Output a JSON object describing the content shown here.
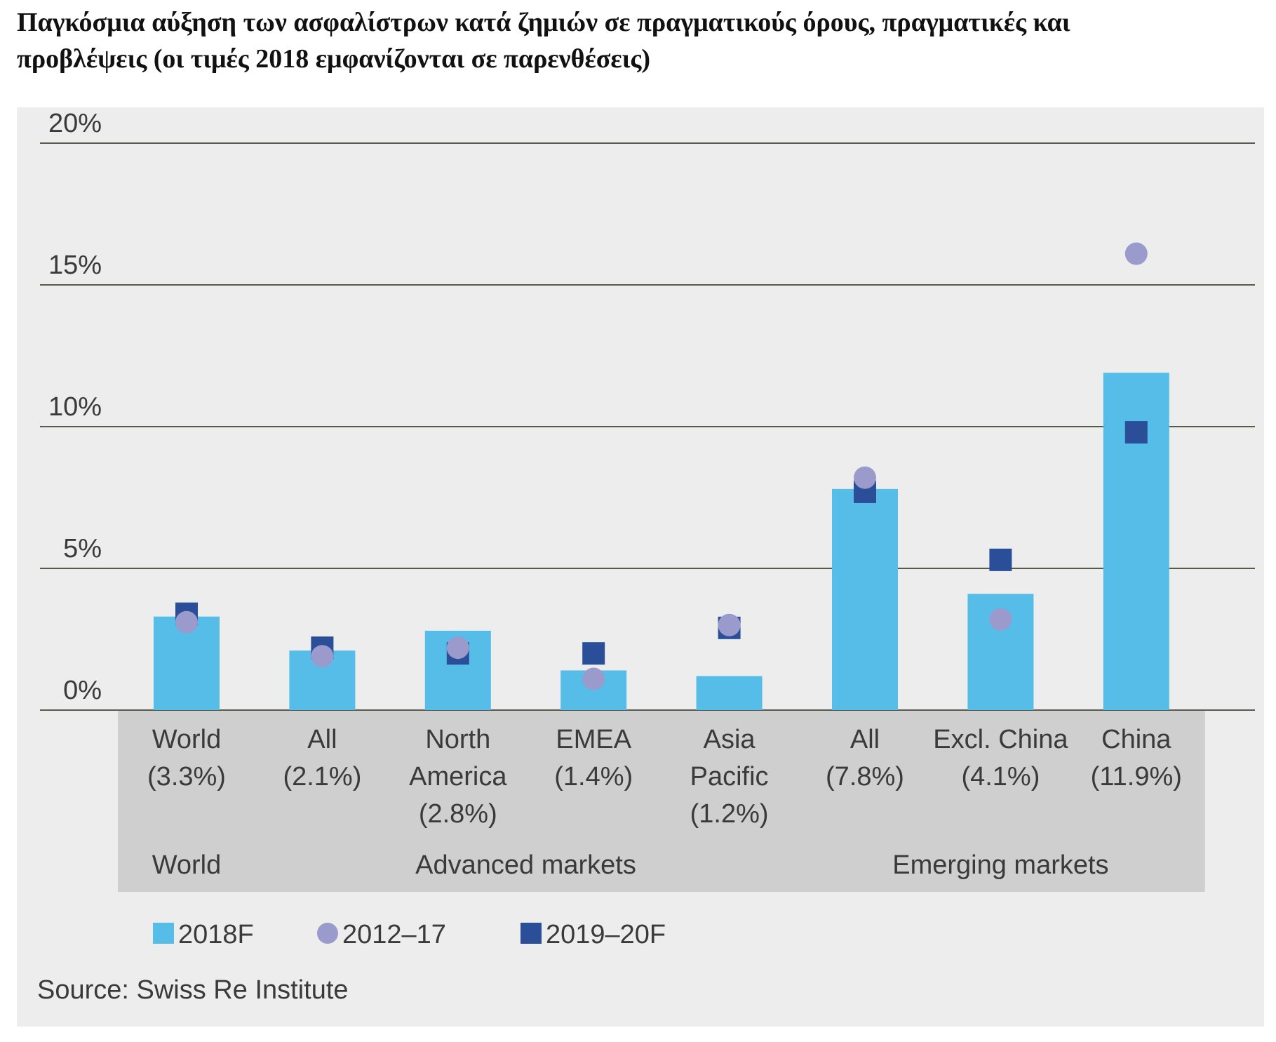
{
  "title_lines": [
    "Παγκόσμια αύξηση των ασφαλίστρων κατά ζημιών σε πραγματικούς όρους, πραγματικές και",
    "προβλέψεις (οι τιμές 2018 εμφανίζονται σε παρενθέσεις)"
  ],
  "source": "Source: Swiss Re Institute",
  "colors": {
    "bar": "#56bde9",
    "circle": "#9a9bcc",
    "square": "#2b4e98",
    "group_box": "#cfcfcf",
    "grid": "#5a5a4a",
    "panel": "#ededed"
  },
  "chart_data": {
    "type": "bar",
    "ylim": [
      0,
      20
    ],
    "yticks": [
      "0%",
      "5%",
      "10%",
      "15%",
      "20%"
    ],
    "ytick_values": [
      0,
      5,
      10,
      15,
      20
    ],
    "grid": true,
    "legend_position": "bottom-left",
    "categories": [
      {
        "lines": [
          "World",
          "(3.3%)"
        ],
        "group": "World"
      },
      {
        "lines": [
          "All",
          "(2.1%)"
        ],
        "group": "Advanced markets"
      },
      {
        "lines": [
          "North",
          "America",
          "(2.8%)"
        ],
        "group": "Advanced markets"
      },
      {
        "lines": [
          "EMEA",
          "(1.4%)"
        ],
        "group": "Advanced markets"
      },
      {
        "lines": [
          "Asia",
          "Pacific",
          "(1.2%)"
        ],
        "group": "Advanced markets"
      },
      {
        "lines": [
          "All",
          "(7.8%)"
        ],
        "group": "Emerging markets"
      },
      {
        "lines": [
          "Excl. China",
          "(4.1%)"
        ],
        "group": "Emerging markets"
      },
      {
        "lines": [
          "China",
          "(11.9%)"
        ],
        "group": "Emerging markets"
      }
    ],
    "groups": [
      {
        "label": "World",
        "first": 0,
        "last": 0
      },
      {
        "label": "Advanced markets",
        "first": 1,
        "last": 4
      },
      {
        "label": "Emerging markets",
        "first": 5,
        "last": 7
      }
    ],
    "series": [
      {
        "name": "2018F",
        "marker": "bar",
        "values": [
          3.3,
          2.1,
          2.8,
          1.4,
          1.2,
          7.8,
          4.1,
          11.9
        ]
      },
      {
        "name": "2012–17",
        "marker": "circle",
        "values": [
          3.1,
          1.9,
          2.2,
          1.1,
          3.0,
          8.2,
          3.2,
          16.1
        ]
      },
      {
        "name": "2019–20F",
        "marker": "square",
        "values": [
          3.4,
          2.2,
          2.0,
          2.0,
          2.9,
          7.7,
          5.3,
          9.8
        ]
      }
    ]
  }
}
